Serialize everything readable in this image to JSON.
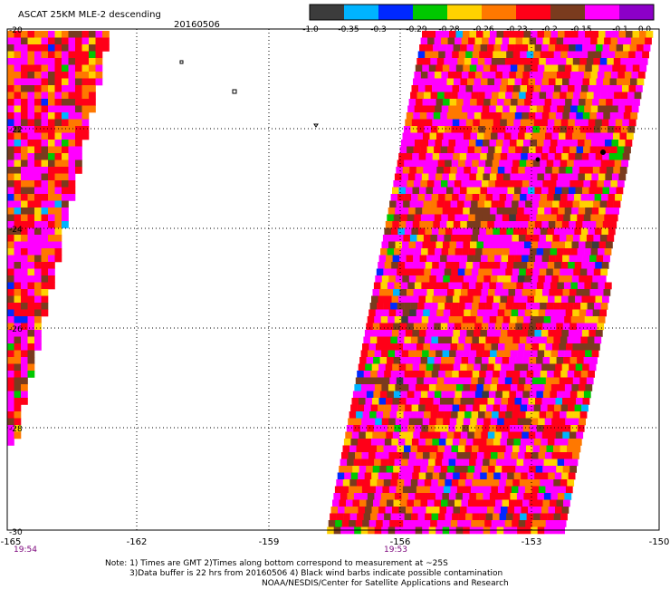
{
  "header": {
    "title": "ASCAT 25KM MLE-2 descending",
    "date": "20160506"
  },
  "colorbar": {
    "colors": [
      "#3c3c3c",
      "#00b4ff",
      "#0028ff",
      "#00c800",
      "#ffd200",
      "#ff7800",
      "#ff0018",
      "#7a3b1e",
      "#ff00ff",
      "#8c00c8"
    ],
    "tick_labels": [
      "-1.0",
      "-0.35",
      "-0.3",
      "-0.29",
      "-0.28",
      "-0.26",
      "-0.23",
      "-0.2",
      "-0.15",
      "-0.1",
      "0.0"
    ]
  },
  "axes": {
    "lon_labels": [
      "-165",
      "-162",
      "-159",
      "-156",
      "-153",
      "-150"
    ],
    "lat_labels": [
      "-20",
      "-22",
      "-24",
      "-26",
      "-28",
      "-30"
    ]
  },
  "times": {
    "left": "19:54",
    "center": "19:53"
  },
  "notes": {
    "line1": "Note: 1) Times are GMT 2)Times along bottom correspond to measurement at ~25S",
    "line2": "3)Data buffer is 22 hrs from 20160506 4) Black wind barbs indicate possible contamination",
    "line3": "NOAA/NESDIS/Center for Satellite Applications and Research"
  },
  "palette": {
    "purple": "#ff00ff",
    "magenta": "#ff00ff",
    "red": "#ff0018",
    "orange": "#ff7800",
    "yellow": "#ffd200",
    "brown": "#7a3b1e",
    "green": "#00c800",
    "blue": "#0028ff",
    "cyan": "#00b4ff",
    "gray": "#3c3c3c",
    "axis": "#000000",
    "time_color": "#7a007a"
  }
}
